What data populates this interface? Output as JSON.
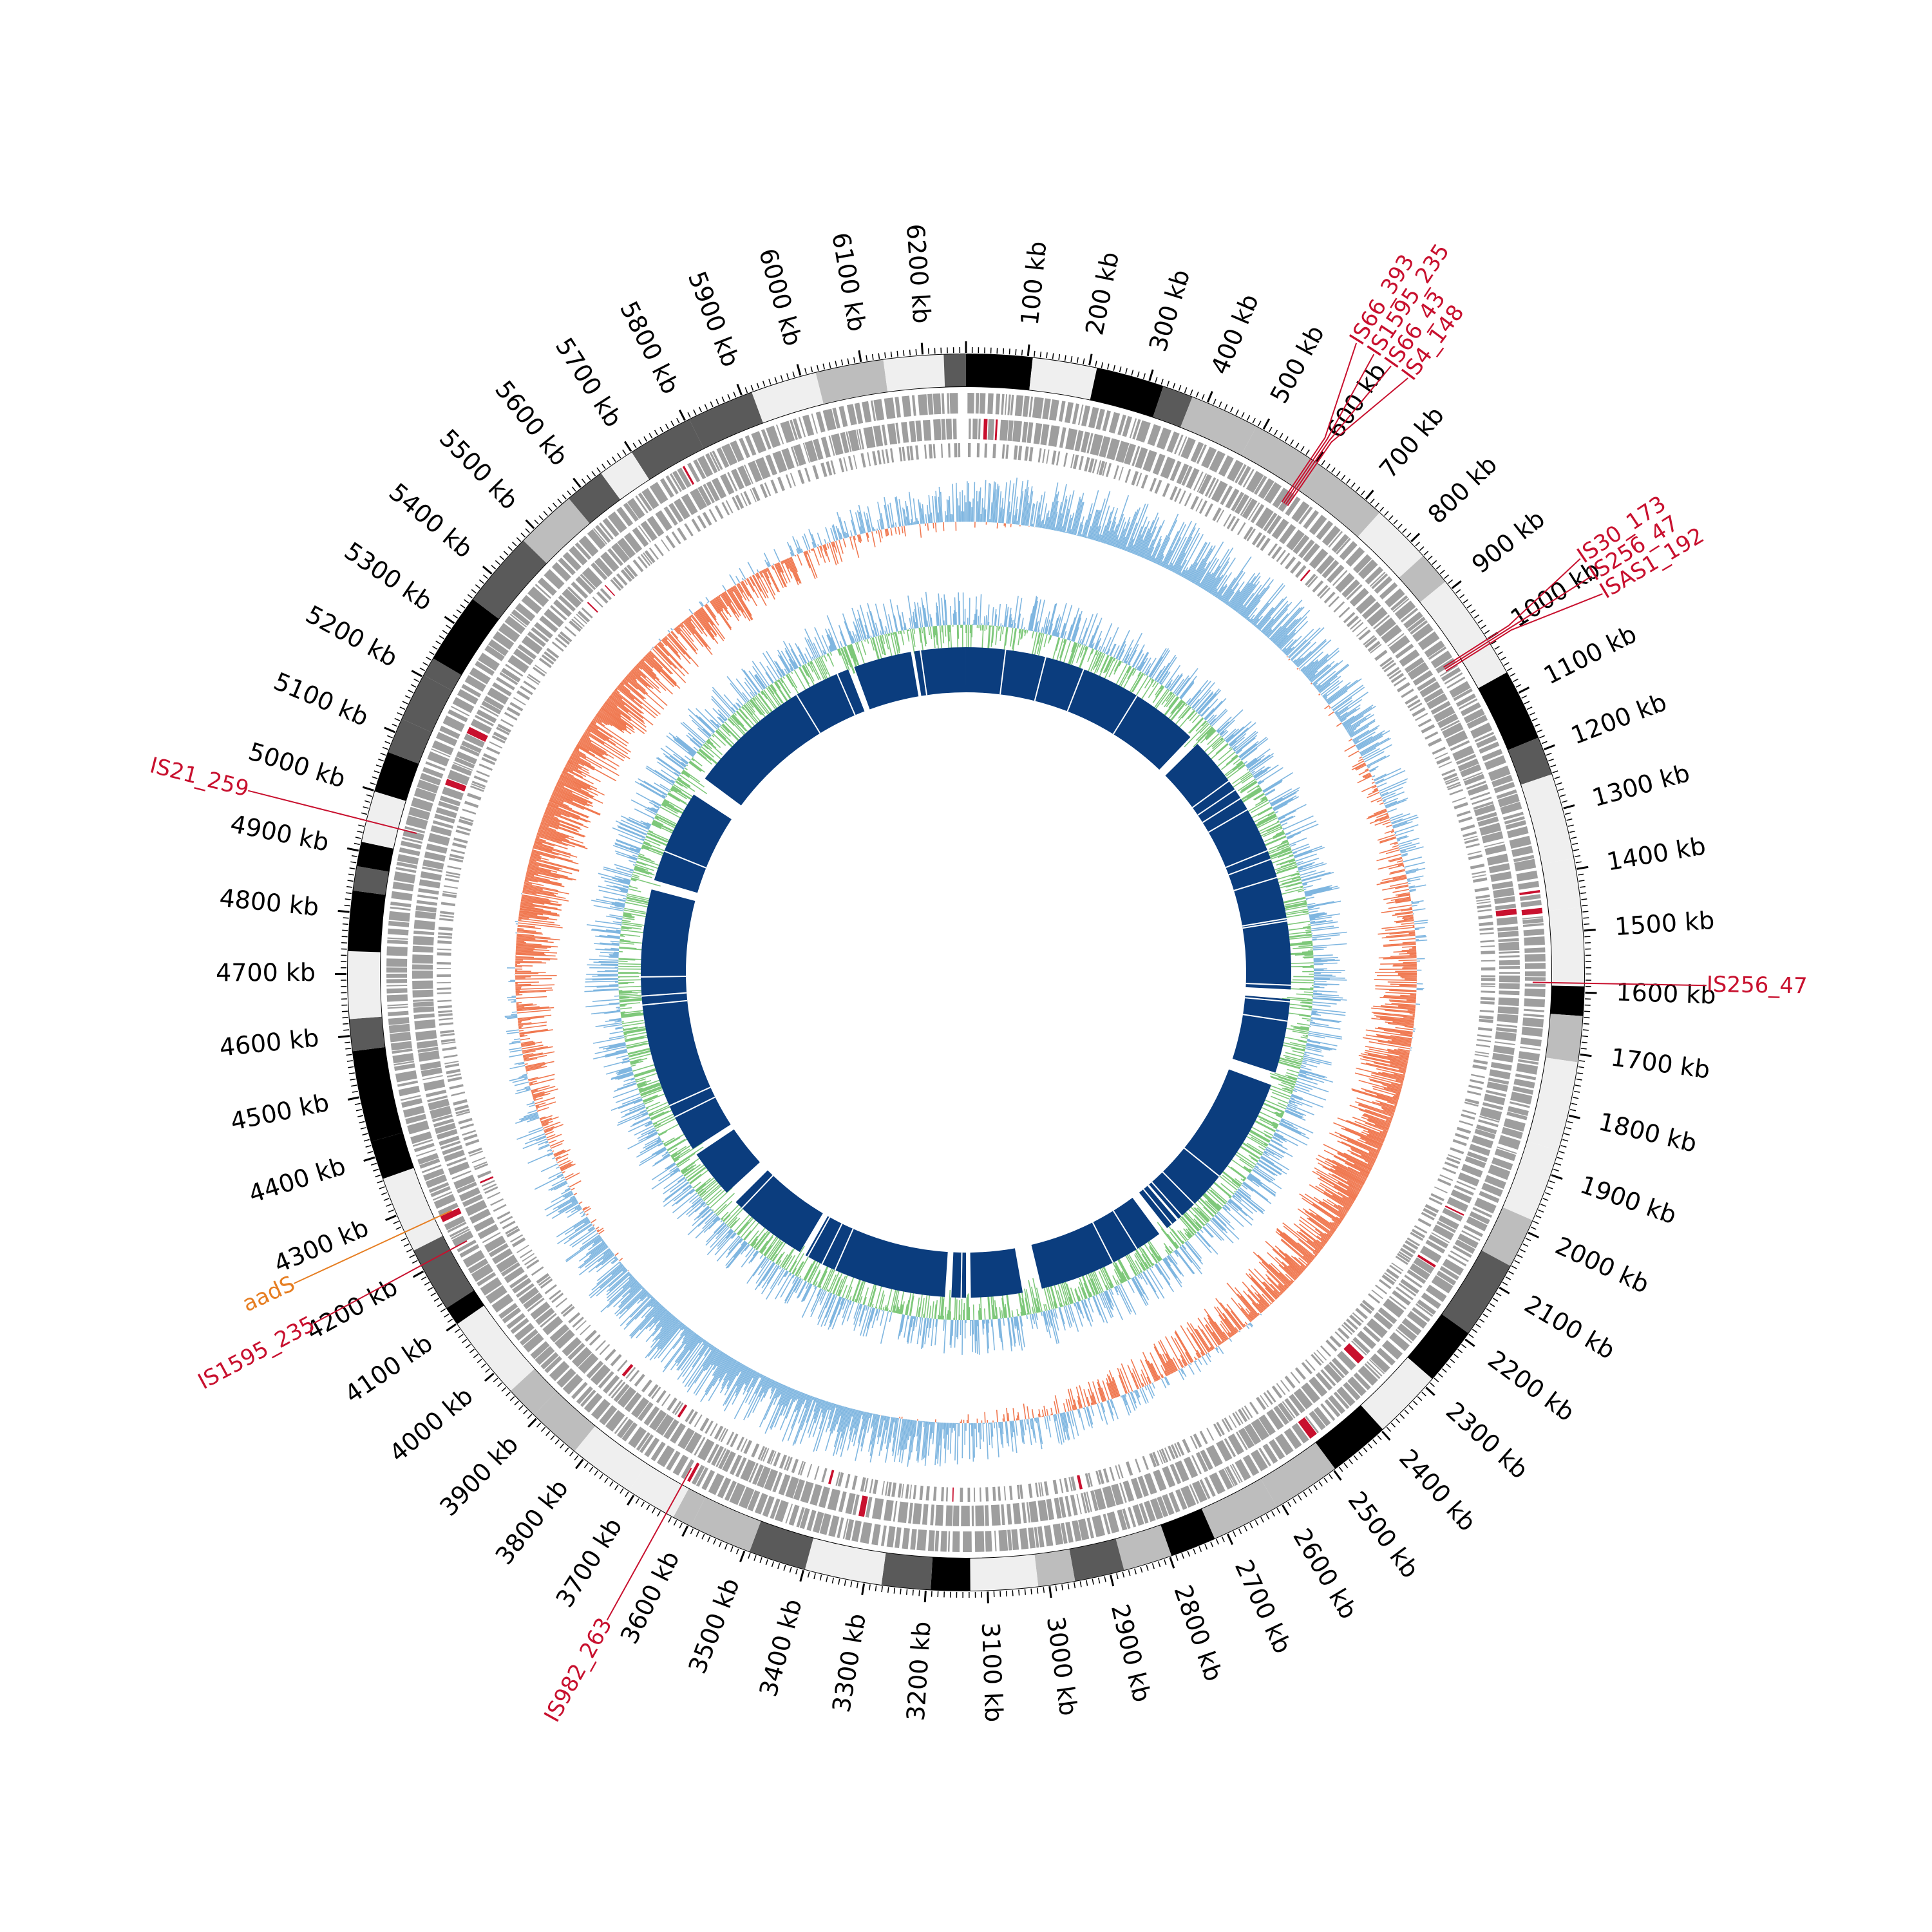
{
  "genome": {
    "length_kb": 6270,
    "tick_step_kb": 100,
    "tick_unit": "kb",
    "first_labeled_tick_kb": 100
  },
  "colors": {
    "is_element": "#c8102e",
    "resistance_gene": "#e67e22",
    "gene_feature": "#9e9e9e",
    "gc_skew_positive": "#7fb6e0",
    "gc_skew_negative": "#f07850",
    "gc_content": "#7ec87a",
    "gc_content_overlay": "#7fb6e0",
    "homology_block": "#0b3d7e",
    "band_shades": [
      "#000000",
      "#5a5a5a",
      "#bdbdbd",
      "#efefef"
    ]
  },
  "annotations": [
    {
      "label": "IS66_393",
      "position_kb": 590,
      "type": "IS element"
    },
    {
      "label": "IS1595_235",
      "position_kb": 594,
      "type": "IS element"
    },
    {
      "label": "IS66_43",
      "position_kb": 598,
      "type": "IS element"
    },
    {
      "label": "IS4_148",
      "position_kb": 602,
      "type": "IS element"
    },
    {
      "label": "IS30_173",
      "position_kb": 1000,
      "type": "IS element"
    },
    {
      "label": "IS256_47",
      "position_kb": 1004,
      "type": "IS element"
    },
    {
      "label": "ISAS1_192",
      "position_kb": 1008,
      "type": "IS element"
    },
    {
      "label": "IS256_47",
      "position_kb": 1585,
      "type": "IS element"
    },
    {
      "label": "IS21_259",
      "position_kb": 4950,
      "type": "IS element"
    },
    {
      "label": "aadS",
      "position_kb": 4270,
      "type": "resistance gene"
    },
    {
      "label": "IS1595_235",
      "position_kb": 4210,
      "type": "IS element"
    },
    {
      "label": "IS982_263",
      "position_kb": 3640,
      "type": "IS element"
    }
  ],
  "homology_track": {
    "gaps_kb": [
      [
        760,
        790
      ],
      [
        1620,
        1650
      ],
      [
        1880,
        1920
      ],
      [
        2470,
        2500
      ],
      [
        2900,
        2960
      ],
      [
        3120,
        3135
      ],
      [
        3180,
        3200
      ],
      [
        3650,
        3670
      ],
      [
        3920,
        3960
      ],
      [
        4110,
        4130
      ],
      [
        4960,
        4990
      ],
      [
        5280,
        5340
      ],
      [
        5900,
        5920
      ],
      [
        6100,
        6110
      ]
    ]
  }
}
